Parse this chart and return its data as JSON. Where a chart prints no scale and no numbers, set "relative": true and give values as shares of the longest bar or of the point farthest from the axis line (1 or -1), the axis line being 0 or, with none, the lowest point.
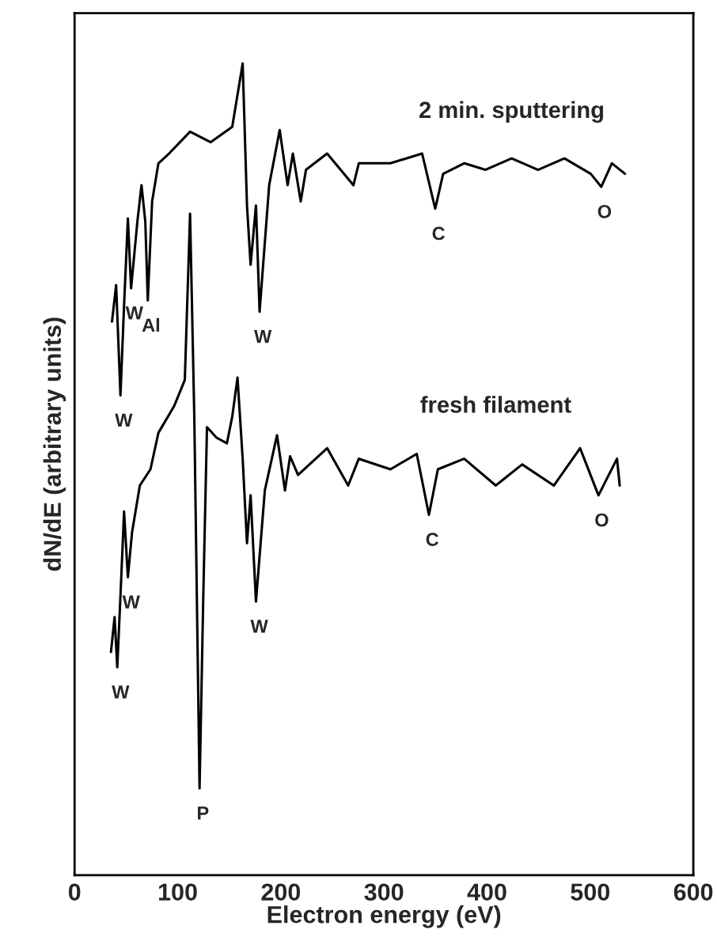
{
  "chart_data": {
    "type": "line",
    "relative": true,
    "xlabel": "Electron energy (eV)",
    "ylabel": "dN/dE (arbitrary units)",
    "xlim": [
      0,
      600
    ],
    "xticks": [
      0,
      100,
      200,
      300,
      400,
      500,
      600
    ],
    "tick_labels": "x",
    "grid": false,
    "legend": false,
    "marker": "none",
    "line_style": "solid",
    "series": [
      {
        "name": "2 min. sputtering",
        "color": "#000000",
        "x": [
          36.3,
          40.3,
          44.5,
          48,
          51.7,
          54.8,
          60.9,
          64.9,
          68.6,
          71,
          75.2,
          81.3,
          91.6,
          112,
          131.9,
          152.9,
          163,
          167.2,
          170.7,
          175.9,
          179.4,
          188.7,
          198.9,
          206.6,
          211.7,
          219.3,
          224.4,
          244.9,
          270.4,
          275.6,
          306.3,
          337,
          349.7,
          357.4,
          377.8,
          398.3,
          423.8,
          449.4,
          475,
          500.5,
          510.7,
          521,
          533.7
        ],
        "values": [
          0.682,
          0.727,
          0.591,
          0.702,
          0.809,
          0.723,
          0.805,
          0.85,
          0.805,
          0.708,
          0.83,
          0.877,
          0.889,
          0.916,
          0.903,
          0.922,
          1.0,
          0.825,
          0.752,
          0.825,
          0.694,
          0.85,
          0.918,
          0.85,
          0.889,
          0.83,
          0.869,
          0.889,
          0.85,
          0.877,
          0.877,
          0.889,
          0.821,
          0.864,
          0.877,
          0.869,
          0.883,
          0.869,
          0.883,
          0.864,
          0.848,
          0.877,
          0.864
        ]
      },
      {
        "name": "fresh filament",
        "color": "#000000",
        "x": [
          35.3,
          38.8,
          41.4,
          44.5,
          48,
          51.7,
          55.7,
          63.3,
          73.6,
          81.3,
          96.6,
          106.9,
          112,
          116.1,
          121.2,
          124.7,
          128.4,
          137.6,
          147.7,
          152.9,
          158,
          163,
          167.2,
          170.7,
          175.9,
          184.5,
          196.3,
          204,
          209,
          216.7,
          244.9,
          265.3,
          275.6,
          306.3,
          331.8,
          343.6,
          352.3,
          377.8,
          408.4,
          434,
          464.7,
          490.2,
          508,
          526,
          528.6
        ],
        "values": [
          0.275,
          0.318,
          0.256,
          0.344,
          0.448,
          0.367,
          0.422,
          0.48,
          0.5,
          0.545,
          0.578,
          0.61,
          0.815,
          0.565,
          0.107,
          0.337,
          0.552,
          0.539,
          0.532,
          0.565,
          0.613,
          0.513,
          0.409,
          0.468,
          0.337,
          0.474,
          0.542,
          0.474,
          0.516,
          0.493,
          0.526,
          0.48,
          0.513,
          0.5,
          0.519,
          0.444,
          0.5,
          0.513,
          0.48,
          0.506,
          0.48,
          0.526,
          0.468,
          0.513,
          0.48
        ]
      }
    ],
    "annotations": [
      {
        "text": "W",
        "x": 44.5,
        "y": 0.591
      },
      {
        "text": "W",
        "x": 54.8,
        "y": 0.723
      },
      {
        "text": "Al",
        "x": 71,
        "y": 0.708
      },
      {
        "text": "W",
        "x": 179.4,
        "y": 0.694
      },
      {
        "text": "C",
        "x": 349.7,
        "y": 0.821
      },
      {
        "text": "O",
        "x": 510.7,
        "y": 0.848
      },
      {
        "text": "W",
        "x": 41.4,
        "y": 0.256
      },
      {
        "text": "W",
        "x": 51.7,
        "y": 0.367
      },
      {
        "text": "P",
        "x": 121.2,
        "y": 0.107
      },
      {
        "text": "W",
        "x": 175.9,
        "y": 0.337
      },
      {
        "text": "C",
        "x": 343.6,
        "y": 0.444
      },
      {
        "text": "O",
        "x": 508,
        "y": 0.468
      }
    ]
  }
}
